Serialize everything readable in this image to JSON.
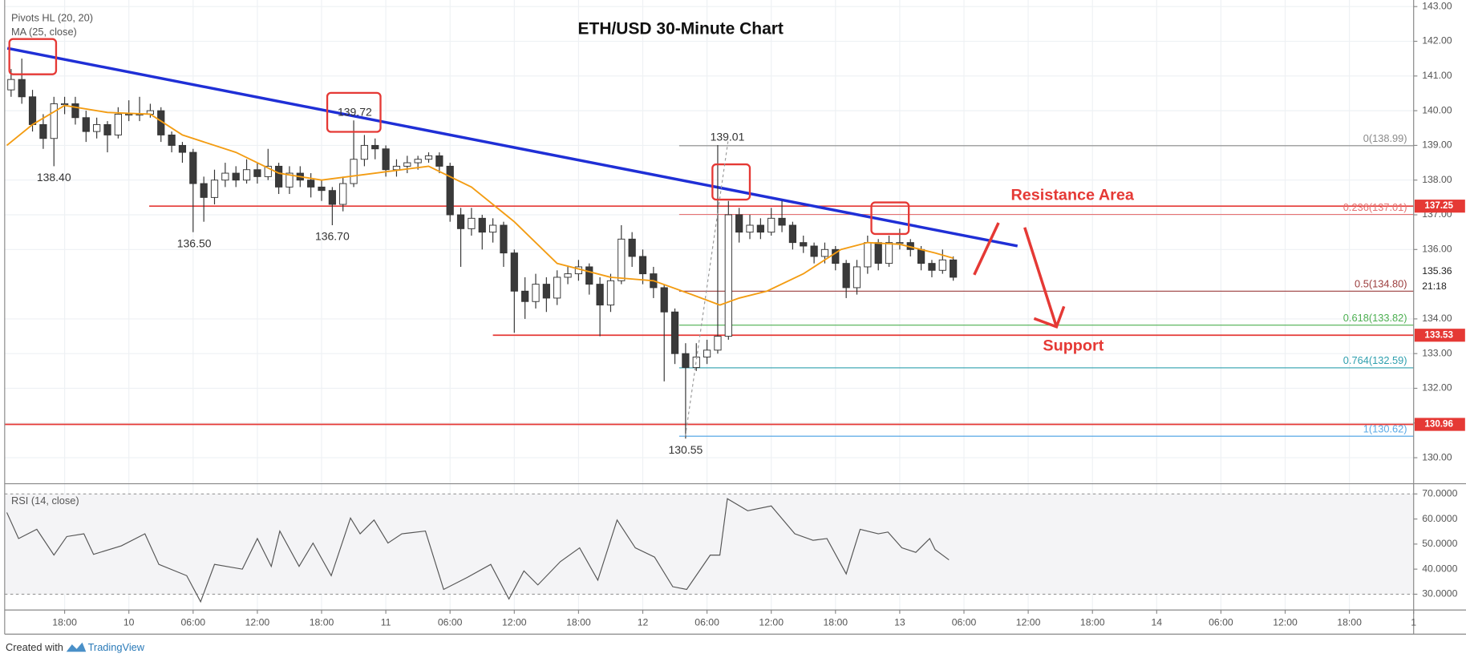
{
  "chart_data": [
    {
      "type": "candlestick",
      "title": "ETH/USD 30-Minute Chart",
      "indicators": [
        "Pivots HL (20, 20)",
        "MA (25, close)"
      ],
      "annotations": [
        "Resistance Area",
        "Support"
      ],
      "xlim": [
        -11.6,
        120
      ],
      "ylim": [
        129.25,
        143.19
      ],
      "yticks": [
        {
          "value": 130,
          "label": "130.00"
        },
        {
          "value": 131,
          "label": "131.00"
        },
        {
          "value": 132,
          "label": "132.00"
        },
        {
          "value": 133,
          "label": "133.00"
        },
        {
          "value": 134,
          "label": "134.00"
        },
        {
          "value": 136,
          "label": "136.00"
        },
        {
          "value": 137,
          "label": "137.00"
        },
        {
          "value": 138,
          "label": "138.00"
        },
        {
          "value": 139,
          "label": "139.00"
        },
        {
          "value": 140,
          "label": "140.00"
        },
        {
          "value": 141,
          "label": "141.00"
        },
        {
          "value": 142,
          "label": "142.00"
        },
        {
          "value": 143,
          "label": "143.00"
        }
      ],
      "grid": true,
      "up_color": "#ffffff",
      "down_color": "#3a3a3a",
      "outline_color": "#333333",
      "x": [
        -11,
        -10,
        -9,
        -8,
        -7,
        -6,
        -5,
        -4,
        -3,
        -2,
        -1,
        0,
        1,
        2,
        3,
        4,
        5,
        6,
        7,
        8,
        9,
        10,
        11,
        12,
        13,
        14,
        15,
        16,
        17,
        18,
        19,
        20,
        21,
        22,
        23,
        24,
        25,
        26,
        27,
        28,
        29,
        30,
        31,
        32,
        33,
        34,
        35,
        36,
        37,
        38,
        39,
        40,
        41,
        42,
        43,
        44,
        45,
        46,
        47,
        48,
        49,
        50,
        51,
        52,
        53,
        54,
        55,
        56,
        57,
        58,
        59,
        60,
        61,
        62,
        63,
        64,
        65,
        66,
        67,
        68,
        69,
        70,
        71,
        72,
        73,
        74,
        75,
        76,
        77
      ],
      "candles": [
        [
          140.6,
          141.2,
          140.4,
          140.9
        ],
        [
          140.9,
          141.5,
          140.2,
          140.4
        ],
        [
          140.4,
          140.6,
          139.4,
          139.6
        ],
        [
          139.6,
          139.9,
          138.9,
          139.2
        ],
        [
          139.2,
          140.4,
          138.4,
          140.2
        ],
        [
          140.2,
          140.4,
          139.9,
          140.2
        ],
        [
          140.2,
          140.4,
          139.6,
          139.8
        ],
        [
          139.8,
          140.0,
          139.1,
          139.4
        ],
        [
          139.4,
          139.8,
          139.2,
          139.6
        ],
        [
          139.6,
          139.7,
          138.8,
          139.3
        ],
        [
          139.3,
          140.1,
          139.2,
          139.9
        ],
        [
          139.9,
          140.3,
          139.7,
          139.9
        ],
        [
          139.9,
          140.4,
          139.7,
          139.9
        ],
        [
          139.9,
          140.2,
          139.8,
          140.0
        ],
        [
          140.0,
          140.1,
          139.1,
          139.3
        ],
        [
          139.3,
          139.4,
          138.8,
          139.0
        ],
        [
          139.0,
          139.1,
          138.5,
          138.8
        ],
        [
          138.8,
          138.9,
          136.5,
          137.9
        ],
        [
          137.9,
          138.1,
          136.8,
          137.5
        ],
        [
          137.5,
          138.3,
          137.3,
          138.0
        ],
        [
          138.0,
          138.5,
          137.8,
          138.2
        ],
        [
          138.2,
          138.4,
          137.8,
          138.0
        ],
        [
          138.0,
          138.6,
          137.9,
          138.3
        ],
        [
          138.3,
          138.5,
          137.9,
          138.1
        ],
        [
          138.1,
          138.9,
          138.0,
          138.4
        ],
        [
          138.4,
          138.5,
          137.6,
          137.8
        ],
        [
          137.8,
          138.4,
          137.6,
          138.2
        ],
        [
          138.2,
          138.4,
          137.8,
          138.0
        ],
        [
          138.0,
          138.2,
          137.5,
          137.8
        ],
        [
          137.8,
          138.0,
          137.4,
          137.7
        ],
        [
          137.7,
          137.8,
          136.7,
          137.3
        ],
        [
          137.3,
          138.1,
          137.1,
          137.9
        ],
        [
          137.9,
          139.72,
          137.8,
          138.6
        ],
        [
          138.6,
          139.3,
          138.4,
          139.0
        ],
        [
          139.0,
          139.2,
          138.6,
          138.9
        ],
        [
          138.9,
          139.0,
          138.1,
          138.3
        ],
        [
          138.3,
          138.6,
          138.1,
          138.4
        ],
        [
          138.4,
          138.7,
          138.2,
          138.5
        ],
        [
          138.5,
          138.7,
          138.3,
          138.6
        ],
        [
          138.6,
          138.8,
          138.5,
          138.7
        ],
        [
          138.7,
          138.8,
          138.2,
          138.4
        ],
        [
          138.4,
          138.5,
          136.8,
          137.0
        ],
        [
          137.0,
          137.2,
          135.5,
          136.6
        ],
        [
          136.6,
          137.2,
          136.4,
          136.9
        ],
        [
          136.9,
          137.0,
          136.0,
          136.5
        ],
        [
          136.5,
          136.9,
          136.2,
          136.7
        ],
        [
          136.7,
          136.8,
          135.5,
          135.9
        ],
        [
          135.9,
          136.0,
          133.6,
          134.8
        ],
        [
          134.8,
          135.2,
          134.0,
          134.5
        ],
        [
          134.5,
          135.3,
          134.3,
          135.0
        ],
        [
          135.0,
          135.2,
          134.2,
          134.6
        ],
        [
          134.6,
          135.4,
          134.4,
          135.2
        ],
        [
          135.2,
          135.5,
          135.0,
          135.3
        ],
        [
          135.3,
          135.7,
          135.1,
          135.5
        ],
        [
          135.5,
          135.6,
          134.7,
          135.0
        ],
        [
          135.0,
          135.2,
          133.5,
          134.4
        ],
        [
          134.4,
          135.3,
          134.2,
          135.1
        ],
        [
          135.1,
          136.7,
          135.0,
          136.3
        ],
        [
          136.3,
          136.5,
          135.5,
          135.8
        ],
        [
          135.8,
          136.0,
          135.0,
          135.3
        ],
        [
          135.3,
          135.5,
          134.6,
          134.9
        ],
        [
          134.9,
          135.0,
          132.2,
          134.2
        ],
        [
          134.2,
          134.3,
          132.7,
          133.0
        ],
        [
          133.0,
          133.3,
          130.55,
          132.6
        ],
        [
          132.6,
          133.3,
          132.5,
          132.9
        ],
        [
          132.9,
          133.4,
          132.7,
          133.1
        ],
        [
          133.1,
          139.01,
          133.0,
          133.5
        ],
        [
          133.5,
          137.4,
          133.4,
          137.0
        ],
        [
          137.0,
          137.2,
          136.2,
          136.5
        ],
        [
          136.5,
          137.0,
          136.3,
          136.7
        ],
        [
          136.7,
          136.9,
          136.3,
          136.5
        ],
        [
          136.5,
          137.2,
          136.4,
          136.9
        ],
        [
          136.9,
          137.4,
          136.5,
          136.7
        ],
        [
          136.7,
          136.8,
          136.0,
          136.2
        ],
        [
          136.2,
          136.4,
          135.9,
          136.1
        ],
        [
          136.1,
          136.2,
          135.6,
          135.8
        ],
        [
          135.8,
          136.2,
          135.6,
          136.0
        ],
        [
          136.0,
          136.1,
          135.4,
          135.6
        ],
        [
          135.6,
          135.7,
          134.6,
          134.9
        ],
        [
          134.9,
          135.7,
          134.7,
          135.5
        ],
        [
          135.5,
          136.4,
          135.3,
          136.2
        ],
        [
          136.2,
          136.3,
          135.4,
          135.6
        ],
        [
          135.6,
          136.4,
          135.5,
          136.2
        ],
        [
          136.2,
          136.6,
          136.0,
          136.2
        ],
        [
          136.2,
          136.3,
          135.8,
          136.0
        ],
        [
          136.0,
          136.1,
          135.4,
          135.6
        ],
        [
          135.6,
          135.7,
          135.2,
          135.4
        ],
        [
          135.4,
          136.0,
          135.3,
          135.7
        ],
        [
          135.7,
          135.8,
          135.1,
          135.2
        ]
      ],
      "ma": {
        "name": "MA (25, close)",
        "color": "#f39c12",
        "x": [
          -11.4,
          -9,
          -6,
          -2,
          2,
          5,
          10,
          14,
          18,
          23,
          28,
          32,
          36,
          40,
          45,
          49,
          52.6,
          55.2,
          57,
          59.6,
          63,
          66.5,
          69,
          72,
          75.3,
          77
        ],
        "values": [
          139.0,
          139.6,
          140.15,
          139.95,
          139.9,
          139.3,
          138.8,
          138.2,
          138.0,
          138.2,
          138.4,
          137.8,
          136.8,
          135.6,
          135.2,
          135.1,
          134.7,
          134.4,
          134.6,
          134.8,
          135.3,
          136.0,
          136.2,
          136.15,
          135.9,
          135.75
        ]
      },
      "pivots": {
        "name": "Pivots HL (20, 20)",
        "highs": [
          {
            "x": 21.1,
            "value": 139.72,
            "label": "139.72"
          },
          {
            "x": 55.9,
            "value": 139.01,
            "label": "139.01"
          }
        ],
        "lows": [
          {
            "x": -7,
            "value": 138.4,
            "label": "138.40"
          },
          {
            "x": 6.1,
            "value": 136.5,
            "label": "136.50"
          },
          {
            "x": 19,
            "value": 136.7,
            "label": "136.70"
          },
          {
            "x": 52,
            "value": 130.55,
            "label": "130.55"
          }
        ]
      },
      "trendline": {
        "color": "#1f2fd6",
        "x": [
          -11.35,
          83
        ],
        "values": [
          141.8,
          136.1
        ]
      },
      "levels": {
        "color": "#e53935",
        "items": [
          {
            "value": 137.25,
            "from": 1.9
          },
          {
            "value": 133.53,
            "from": 34
          },
          {
            "value": 130.96,
            "from": -11.6
          }
        ]
      },
      "fib": {
        "from": 51.4,
        "levels": [
          {
            "value": 138.99,
            "label": "0(138.99)",
            "color": "#8a8a8a"
          },
          {
            "value": 137.01,
            "label": "0.236(137.01)",
            "color": "#e57373"
          },
          {
            "value": 134.8,
            "label": "0.5(134.80)",
            "color": "#9c3d3d"
          },
          {
            "value": 133.82,
            "label": "0.618(133.82)",
            "color": "#4caf50"
          },
          {
            "value": 132.59,
            "label": "0.764(132.59)",
            "color": "#2e9fae"
          },
          {
            "value": 130.62,
            "label": "1(130.62)",
            "color": "#5aa9e6"
          }
        ]
      },
      "last_price": 135.36,
      "countdown": "21:18"
    },
    {
      "type": "line",
      "title": "RSI (14, close)",
      "color": "#555555",
      "xlim": [
        -11.6,
        120
      ],
      "ylim": [
        23.7,
        73.7
      ],
      "bands": [
        30,
        70
      ],
      "yticks": [
        {
          "value": 30,
          "label": "30.0000"
        },
        {
          "value": 40,
          "label": "40.0000"
        },
        {
          "value": 50,
          "label": "50.0000"
        },
        {
          "value": 60,
          "label": "60.0000"
        },
        {
          "value": 70,
          "label": "70.0000"
        }
      ],
      "xticks": [
        {
          "value": -6,
          "label": "18:00"
        },
        {
          "value": 0,
          "label": "10"
        },
        {
          "value": 6,
          "label": "06:00"
        },
        {
          "value": 12,
          "label": "12:00"
        },
        {
          "value": 18,
          "label": "18:00"
        },
        {
          "value": 24,
          "label": "11"
        },
        {
          "value": 30,
          "label": "06:00"
        },
        {
          "value": 36,
          "label": "12:00"
        },
        {
          "value": 42,
          "label": "18:00"
        },
        {
          "value": 48,
          "label": "12"
        },
        {
          "value": 54,
          "label": "06:00"
        },
        {
          "value": 60,
          "label": "12:00"
        },
        {
          "value": 66,
          "label": "18:00"
        },
        {
          "value": 72,
          "label": "13"
        },
        {
          "value": 78,
          "label": "06:00"
        },
        {
          "value": 84,
          "label": "12:00"
        },
        {
          "value": 90,
          "label": "18:00"
        },
        {
          "value": 96,
          "label": "14"
        },
        {
          "value": 102,
          "label": "06:00"
        },
        {
          "value": 108,
          "label": "12:00"
        },
        {
          "value": 114,
          "label": "18:00"
        },
        {
          "value": 120,
          "label": "1"
        }
      ],
      "x": [
        -11.4,
        -10.3,
        -8.6,
        -7,
        -5.8,
        -4.2,
        -3.3,
        -0.7,
        1.5,
        2.8,
        5.4,
        6.7,
        8,
        10.6,
        12,
        13.3,
        14.1,
        15.9,
        17.2,
        18.9,
        20.7,
        21.6,
        22.9,
        24.2,
        25.5,
        27.7,
        29.4,
        31.6,
        33.8,
        35.5,
        36.9,
        38.2,
        40.3,
        42.1,
        43.8,
        45.6,
        47.3,
        49.1,
        50.8,
        52.1,
        54.3,
        55.2,
        55.9,
        57.8,
        60,
        62.2,
        63.9,
        65.2,
        67,
        68.3,
        70,
        70.9,
        72.2,
        73.5,
        74.8,
        75.3,
        76.6
      ],
      "values": [
        62.6,
        52.2,
        55.9,
        45.6,
        53,
        54.1,
        45.9,
        49.3,
        54.1,
        41.9,
        37.4,
        27,
        41.9,
        40,
        52.2,
        41.1,
        55.2,
        41.1,
        50.4,
        37.4,
        60.4,
        54.1,
        59.6,
        50.4,
        54.1,
        55.2,
        31.9,
        36.7,
        41.9,
        28.1,
        39.3,
        33.7,
        43,
        48.5,
        35.6,
        59.6,
        48.5,
        44.8,
        33,
        31.9,
        45.6,
        45.6,
        68.1,
        63.3,
        65.2,
        54.1,
        51.5,
        52.2,
        38.1,
        55.9,
        54.1,
        54.8,
        48.5,
        46.7,
        52.2,
        47.8,
        43.7
      ]
    }
  ],
  "footer": {
    "prefix": "Created with",
    "brand": "TradingView"
  }
}
